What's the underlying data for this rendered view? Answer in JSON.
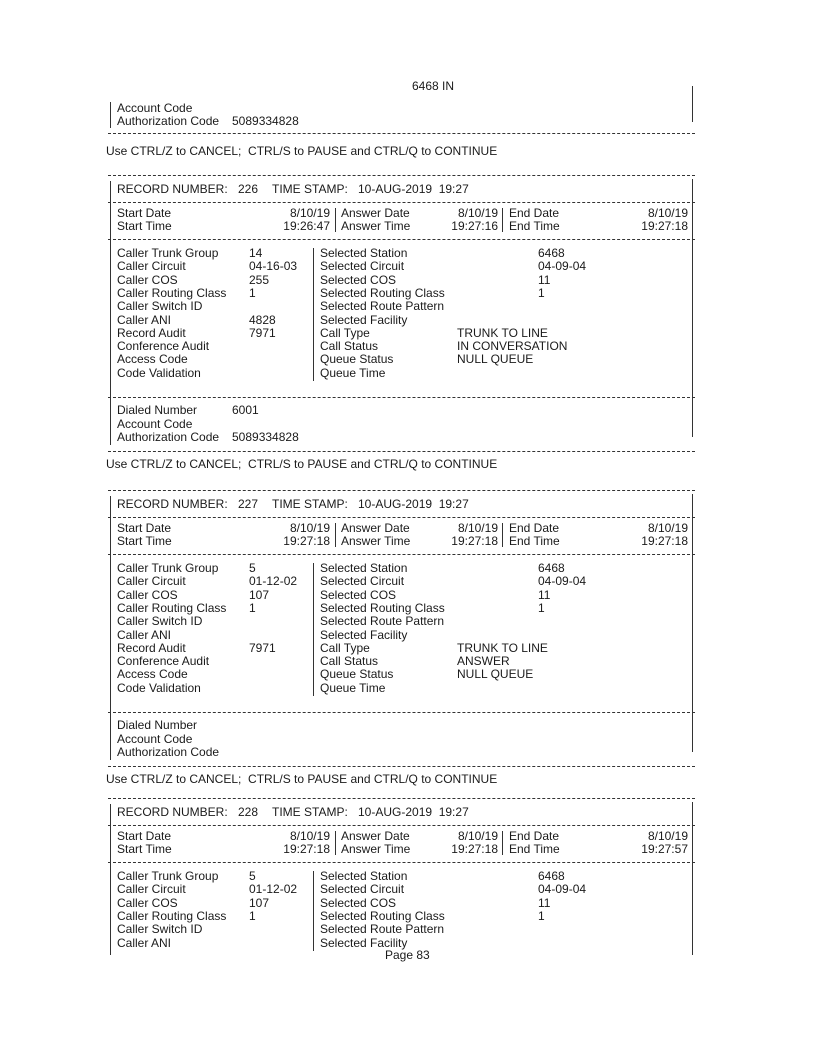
{
  "top": {
    "station_line": "6468 IN",
    "account_code_label": "Account Code",
    "authorization_code_label": "Authorization Code",
    "authorization_code_value": "5089334828"
  },
  "ctrl_message": "Use CTRL/Z to CANCEL;  CTRL/S to PAUSE and CTRL/Q to CONTINUE",
  "labels": {
    "record_number": "RECORD NUMBER:",
    "time_stamp": "TIME STAMP:",
    "start_date": "Start Date",
    "start_time": "Start Time",
    "answer_date": "Answer Date",
    "answer_time": "Answer Time",
    "end_date": "End Date",
    "end_time": "End Time",
    "left": [
      "Caller Trunk Group",
      "Caller Circuit",
      "Caller COS",
      "Caller Routing Class",
      "Caller Switch ID",
      "Caller ANI",
      "Record Audit",
      "Conference Audit",
      "Access Code",
      "Code Validation"
    ],
    "right": [
      "Selected Station",
      "Selected Circuit",
      "Selected COS",
      "Selected Routing Class",
      "Selected Route Pattern",
      "Selected Facility",
      "Call Type",
      "Call Status",
      "Queue Status",
      "Queue Time"
    ],
    "dialed_number": "Dialed Number",
    "account_code": "Account Code",
    "authorization_code": "Authorization Code"
  },
  "records": [
    {
      "number": "226",
      "time_stamp": "10-AUG-2019  19:27",
      "start_date": "8/10/19",
      "start_time": "19:26:47",
      "answer_date": "8/10/19",
      "answer_time": "19:27:16",
      "end_date": "8/10/19",
      "end_time": "19:27:18",
      "left_values": [
        "14",
        "04-16-03",
        "255",
        "1",
        "",
        "4828",
        "7971",
        "",
        "",
        ""
      ],
      "right_values": [
        "6468",
        "04-09-04",
        "11",
        "1",
        "",
        "",
        "TRUNK TO LINE",
        "IN CONVERSATION",
        "NULL QUEUE",
        ""
      ],
      "dialed_number": "6001",
      "account_code": "",
      "authorization_code": "5089334828"
    },
    {
      "number": "227",
      "time_stamp": "10-AUG-2019  19:27",
      "start_date": "8/10/19",
      "start_time": "19:27:18",
      "answer_date": "8/10/19",
      "answer_time": "19:27:18",
      "end_date": "8/10/19",
      "end_time": "19:27:18",
      "left_values": [
        "5",
        "01-12-02",
        "107",
        "1",
        "",
        "",
        "7971",
        "",
        "",
        ""
      ],
      "right_values": [
        "6468",
        "04-09-04",
        "11",
        "1",
        "",
        "",
        "TRUNK TO LINE",
        "ANSWER",
        "NULL QUEUE",
        ""
      ],
      "dialed_number": "",
      "account_code": "",
      "authorization_code": ""
    },
    {
      "number": "228",
      "time_stamp": "10-AUG-2019  19:27",
      "start_date": "8/10/19",
      "start_time": "19:27:18",
      "answer_date": "8/10/19",
      "answer_time": "19:27:18",
      "end_date": "8/10/19",
      "end_time": "19:27:57",
      "left_values": [
        "5",
        "01-12-02",
        "107",
        "1",
        "",
        ""
      ],
      "right_values": [
        "6468",
        "04-09-04",
        "11",
        "1",
        "",
        ""
      ]
    }
  ],
  "footer": {
    "page": "Page 83"
  }
}
